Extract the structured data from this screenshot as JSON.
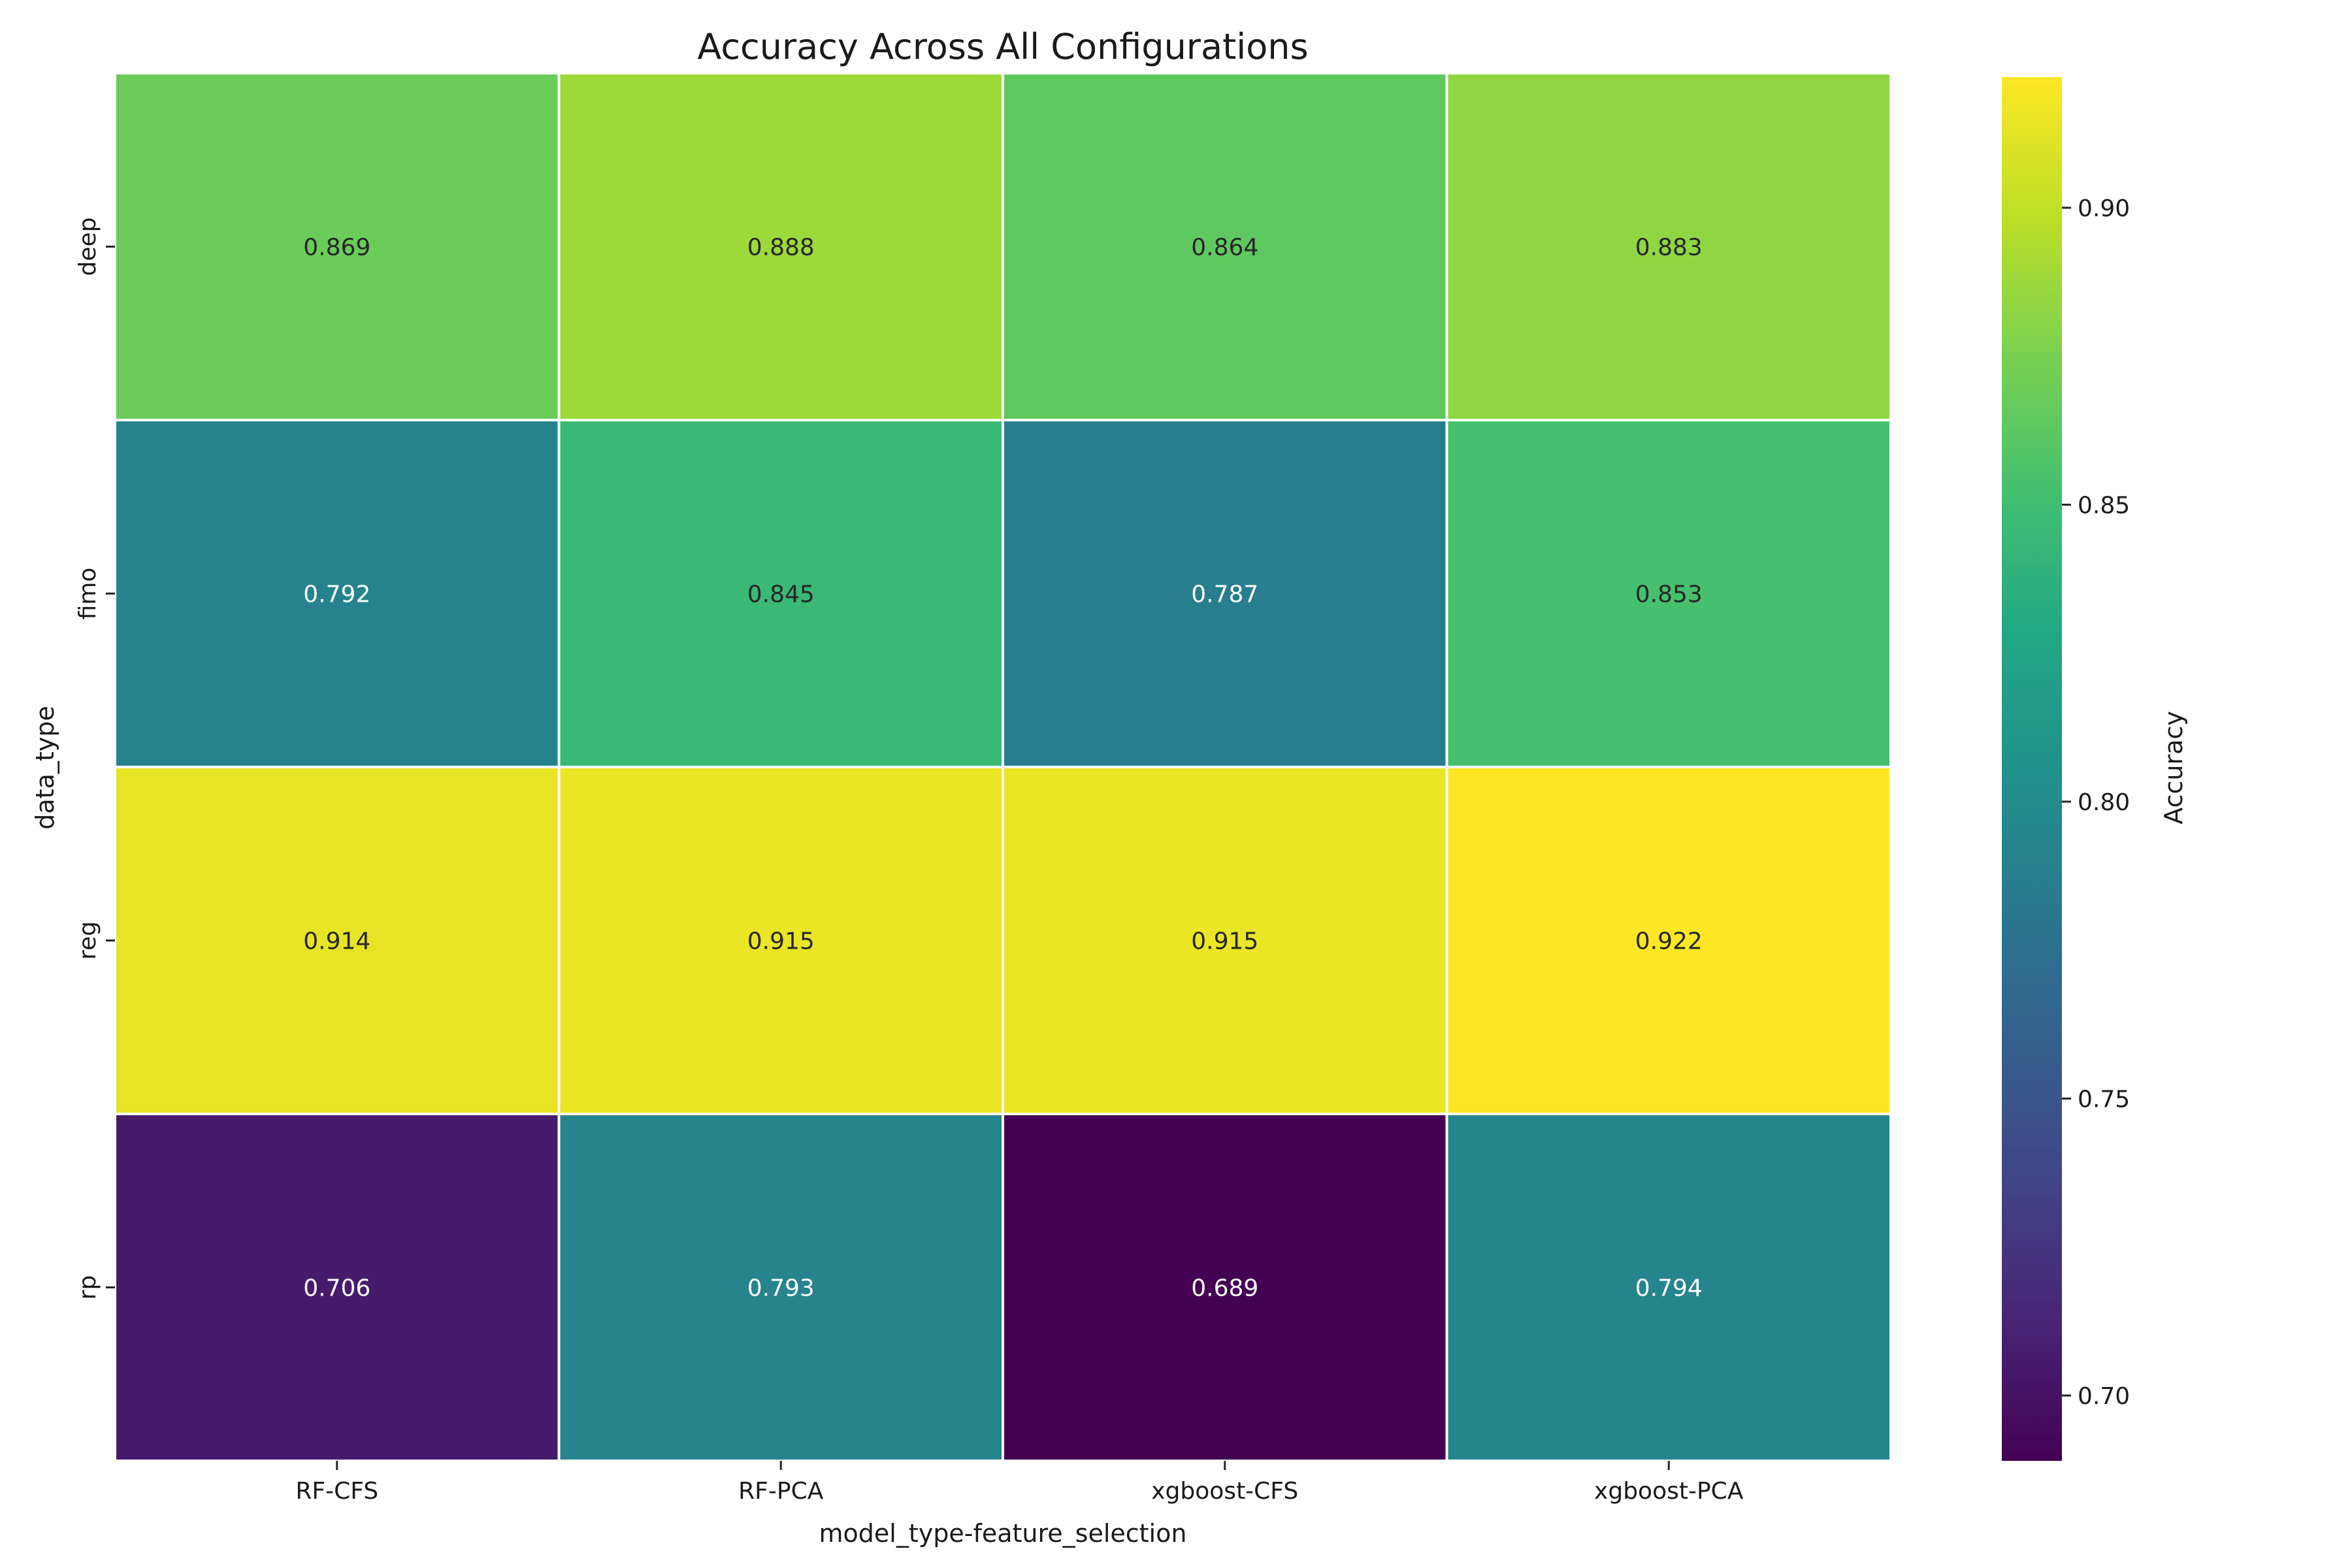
{
  "chart_data": {
    "type": "heatmap",
    "title": "Accuracy Across All Configurations",
    "xlabel": "model_type-feature_selection",
    "ylabel": "data_type",
    "x_categories": [
      "RF-CFS",
      "RF-PCA",
      "xgboost-CFS",
      "xgboost-PCA"
    ],
    "y_categories": [
      "deep",
      "fimo",
      "reg",
      "rp"
    ],
    "values": [
      [
        0.869,
        0.888,
        0.864,
        0.883
      ],
      [
        0.792,
        0.845,
        0.787,
        0.853
      ],
      [
        0.914,
        0.915,
        0.915,
        0.922
      ],
      [
        0.706,
        0.793,
        0.689,
        0.794
      ]
    ],
    "colormap": "viridis",
    "colorbar": {
      "label": "Accuracy",
      "range": [
        0.689,
        0.922
      ],
      "ticks": [
        0.7,
        0.75,
        0.8,
        0.85,
        0.9
      ],
      "tick_labels": [
        "0.70",
        "0.75",
        "0.80",
        "0.85",
        "0.90"
      ]
    },
    "cell_border_color": "#ffffff"
  }
}
